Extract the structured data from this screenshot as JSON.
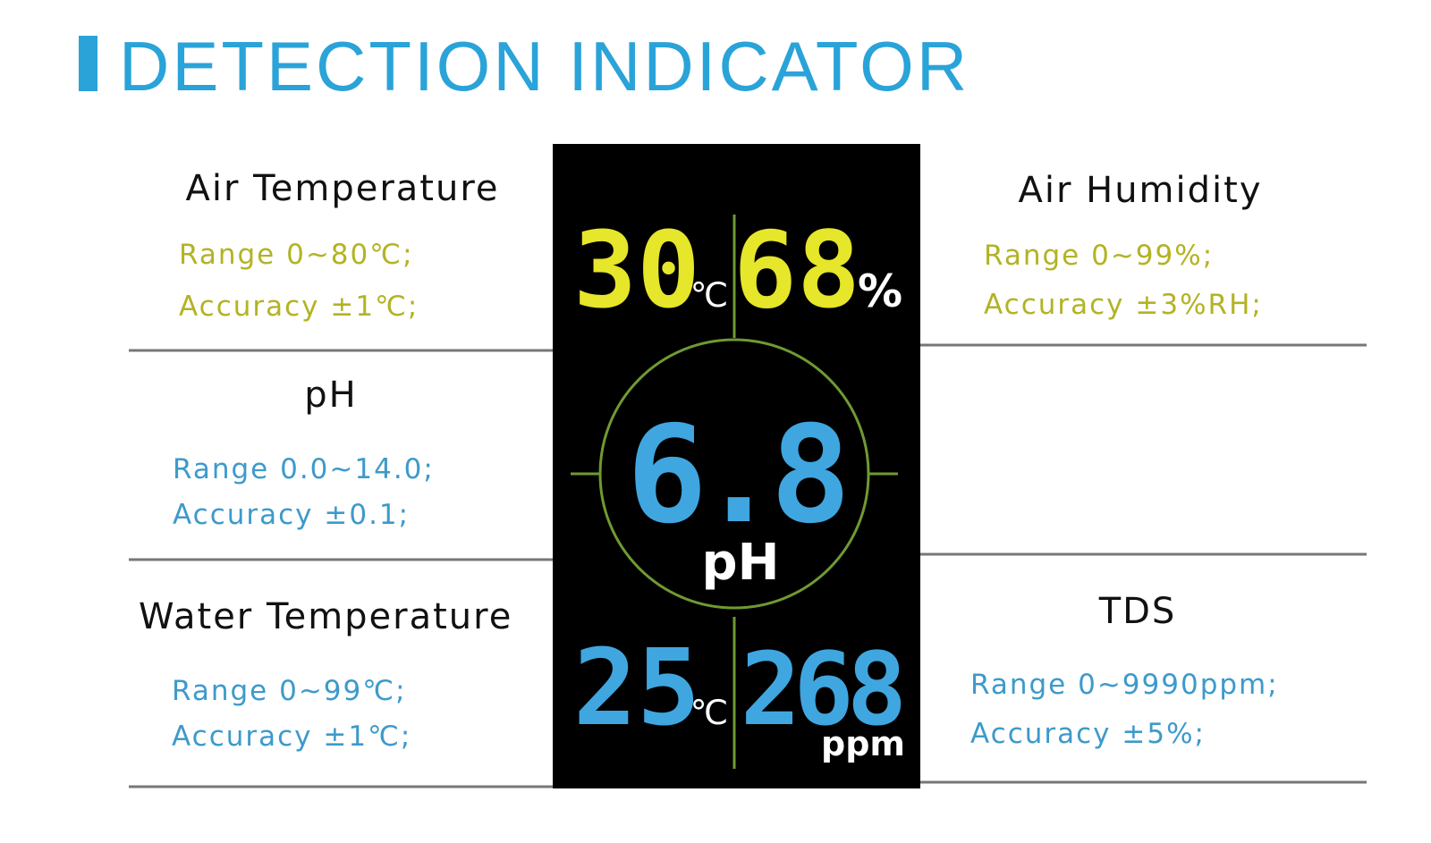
{
  "header": {
    "title": "DETECTION INDICATOR"
  },
  "indicators": [
    {
      "name": "Air Temperature",
      "range": "Range 0~80℃;",
      "accuracy": "Accuracy ±1℃;"
    },
    {
      "name": "pH",
      "range": "Range 0.0~14.0;",
      "accuracy": "Accuracy ±0.1;"
    },
    {
      "name": "Water Temperature",
      "range": "Range 0~99℃;",
      "accuracy": "Accuracy ±1℃;"
    },
    {
      "name": "Air Humidity",
      "range": "Range 0~99%;",
      "accuracy": "Accuracy ±3%RH;"
    },
    {
      "name": "TDS",
      "range": "Range 0~9990ppm;",
      "accuracy": "Accuracy ±5%;"
    }
  ],
  "display": {
    "air_temperature": {
      "value": "30",
      "unit": "℃"
    },
    "air_humidity": {
      "value": "68",
      "unit": "%"
    },
    "ph": {
      "value": "6.8",
      "unit": "pH"
    },
    "water_temperature": {
      "value": "25",
      "unit": "℃"
    },
    "tds": {
      "value": "268",
      "unit": "ppm"
    }
  }
}
